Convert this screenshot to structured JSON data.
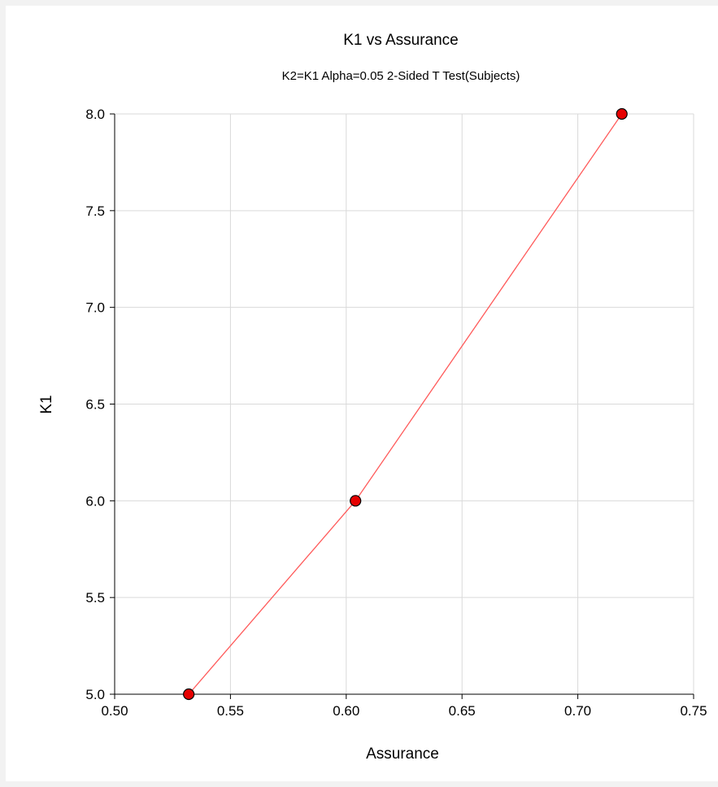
{
  "chart_data": {
    "type": "line",
    "title": "K1 vs Assurance",
    "subtitle": "K2=K1 Alpha=0.05 2-Sided T Test(Subjects)",
    "xlabel": "Assurance",
    "ylabel": "K1",
    "xlim": [
      0.5,
      0.75
    ],
    "ylim": [
      5.0,
      8.0
    ],
    "xticks": [
      "0.50",
      "0.55",
      "0.60",
      "0.65",
      "0.70",
      "0.75"
    ],
    "yticks": [
      "5.0",
      "5.5",
      "6.0",
      "6.5",
      "7.0",
      "7.5",
      "8.0"
    ],
    "grid": true,
    "series": [
      {
        "x": [
          0.532,
          0.604,
          0.719
        ],
        "y": [
          5.0,
          6.0,
          8.0
        ],
        "line_color": "#ff5a5a",
        "marker_color": "#e60000"
      }
    ]
  }
}
